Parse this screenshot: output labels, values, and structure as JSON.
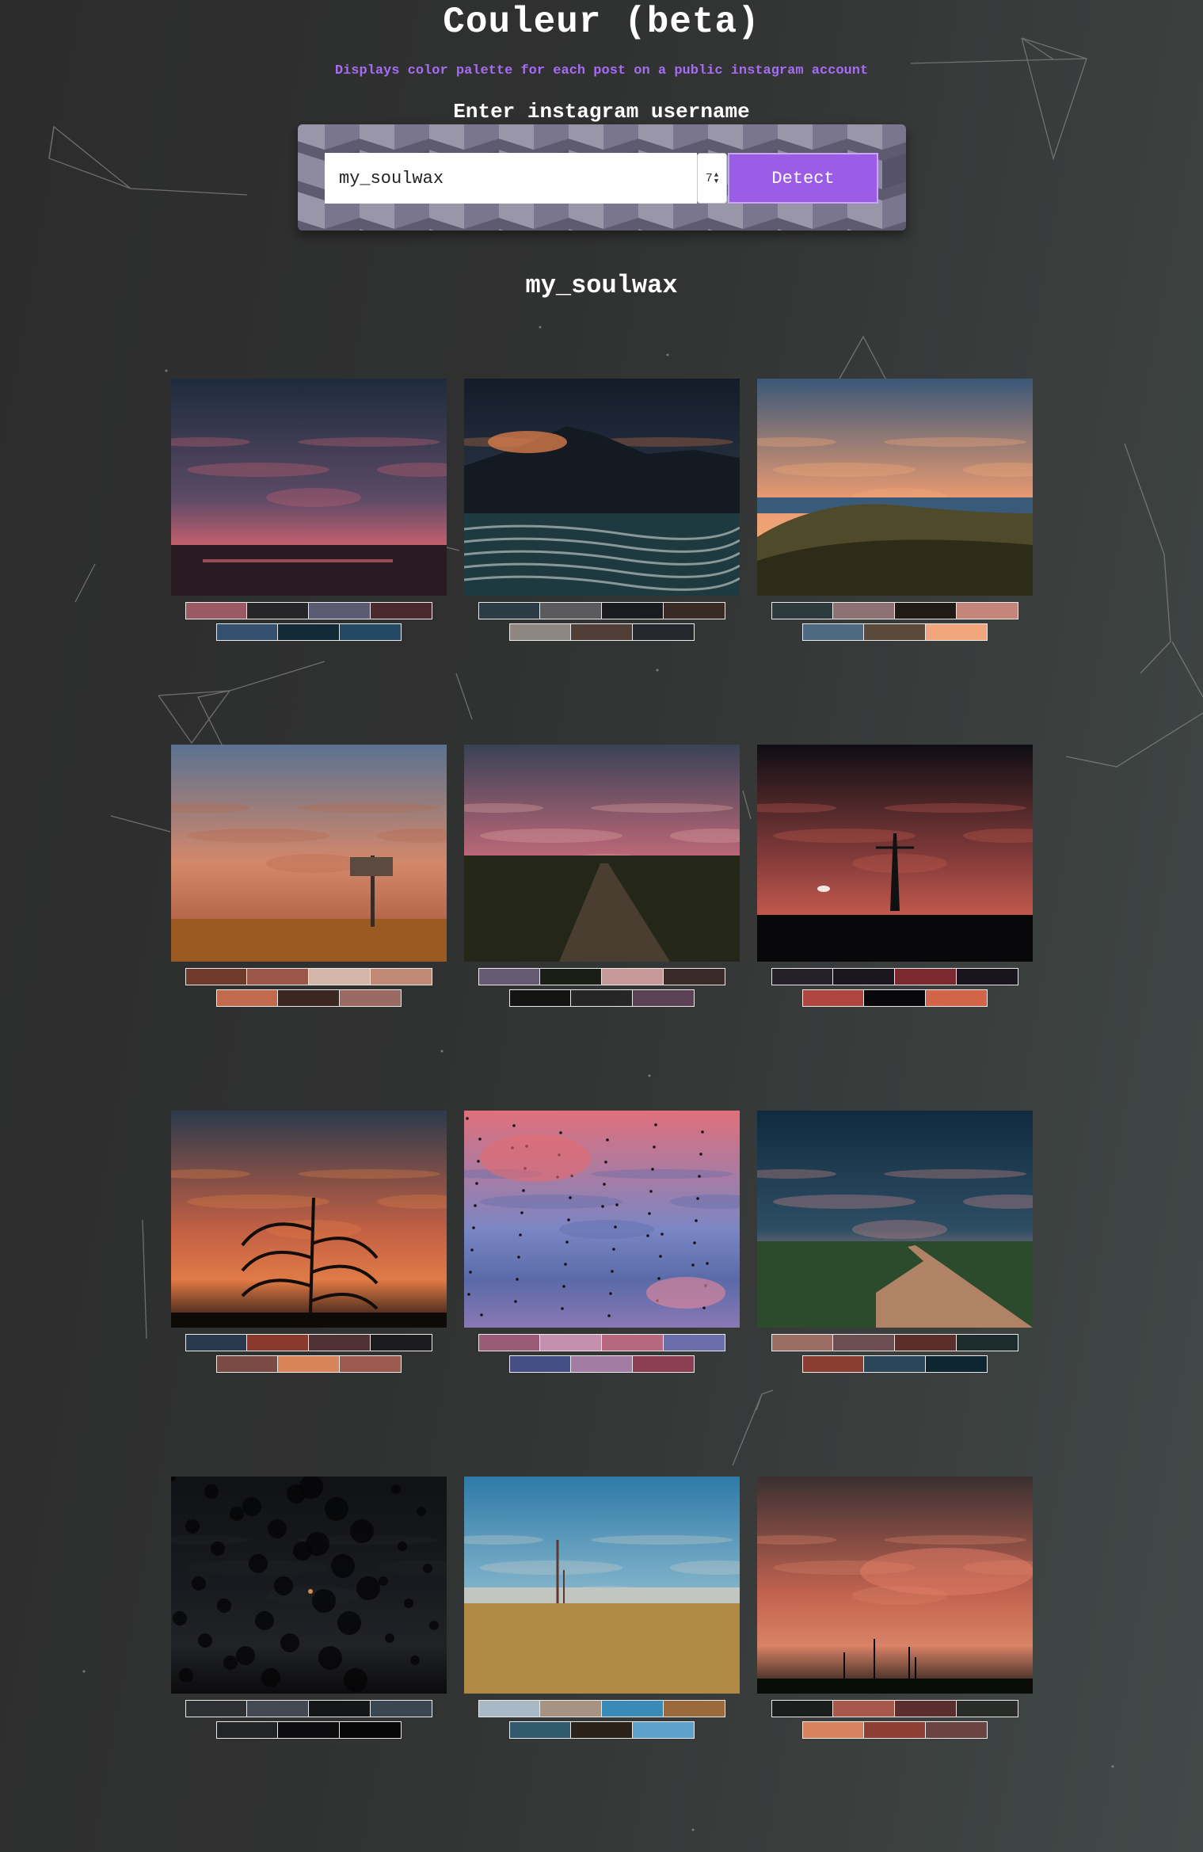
{
  "header": {
    "title": "Couleur (beta)",
    "subtitle": "Displays color palette for each post on a public instagram account",
    "input_label": "Enter instagram username"
  },
  "search": {
    "username_value": "my_soulwax",
    "count_value": "7",
    "detect_label": "Detect"
  },
  "account": {
    "username": "my_soulwax"
  },
  "colors": {
    "accent": "#9b5de5",
    "subtitle": "#a66cf2",
    "background": "#2e2e2e"
  },
  "posts": [
    {
      "sky_top": "#1d2b3d",
      "sky_mid": "#5b4a66",
      "horizon": "#c9616f",
      "ground": "#2a1a22",
      "kind": "sunset-beach",
      "palette": [
        [
          "#9a5a65",
          "#262628",
          "#5a5a72",
          "#4a2a2e"
        ],
        [
          "#33506f",
          "#122a33",
          "#234965"
        ]
      ]
    },
    {
      "sky_top": "#141c2a",
      "sky_mid": "#2a3444",
      "horizon": "#c37040",
      "ground": "#1c2c30",
      "kind": "coast",
      "palette": [
        [
          "#2b3c46",
          "#5a5a5c",
          "#1a1c20",
          "#3a2a26"
        ],
        [
          "#8e8680",
          "#4e3e36",
          "#24282c"
        ]
      ]
    },
    {
      "sky_top": "#3a5878",
      "sky_mid": "#e89a72",
      "horizon": "#f2a876",
      "ground": "#4a4628",
      "kind": "grass",
      "palette": [
        [
          "#2c3c3e",
          "#8c7272",
          "#201a16",
          "#c48678"
        ],
        [
          "#4e6a82",
          "#5a4a3c",
          "#f2a67c"
        ]
      ]
    },
    {
      "sky_top": "#5a7290",
      "sky_mid": "#d4886a",
      "horizon": "#b86a4e",
      "ground": "#8a4a22",
      "kind": "field",
      "palette": [
        [
          "#6e3a2a",
          "#9a5648",
          "#d4b6a8",
          "#c08a76"
        ],
        [
          "#c26a4e",
          "#3c2620",
          "#9a6a62"
        ]
      ]
    },
    {
      "sky_top": "#3a4256",
      "sky_mid": "#c46a7a",
      "horizon": "#e2a2a0",
      "ground": "#1e2016",
      "kind": "road",
      "palette": [
        [
          "#665a72",
          "#1a1e16",
          "#c69a98",
          "#3a2a2a"
        ],
        [
          "#141412",
          "#262626",
          "#5a4254"
        ]
      ]
    },
    {
      "sky_top": "#0e0e14",
      "sky_mid": "#8a3e3c",
      "horizon": "#c0584c",
      "ground": "#0c0a0e",
      "kind": "tower",
      "palette": [
        [
          "#26202a",
          "#1a1620",
          "#7a2a2e",
          "#18161c"
        ],
        [
          "#b04640",
          "#08080c",
          "#d26448"
        ]
      ]
    },
    {
      "sky_top": "#2c3a4c",
      "sky_mid": "#c26044",
      "horizon": "#e07a46",
      "ground": "#18100e",
      "kind": "plant",
      "palette": [
        [
          "#2a3a4e",
          "#8a3a2c",
          "#4e3236",
          "#1c1c1e"
        ],
        [
          "#7a4a44",
          "#d8845a",
          "#9c5a4e"
        ]
      ]
    },
    {
      "sky_top": "#e0707c",
      "sky_mid": "#7a86c4",
      "horizon": "#5a6aa8",
      "ground": "#8a78b4",
      "kind": "birds",
      "palette": [
        [
          "#9a5a78",
          "#c490ae",
          "#b8687e",
          "#6a6eaa"
        ],
        [
          "#464e86",
          "#a27ca2",
          "#8c3e52"
        ]
      ]
    },
    {
      "sky_top": "#102a3e",
      "sky_mid": "#2e4e64",
      "horizon": "#d08a86",
      "ground": "#9a6a56",
      "kind": "dirt-road",
      "palette": [
        [
          "#9a6e62",
          "#6a4e52",
          "#5a2e2a",
          "#1c2c2c"
        ],
        [
          "#8a3e32",
          "#2a4658",
          "#0e2630"
        ]
      ]
    },
    {
      "sky_top": "#16181c",
      "sky_mid": "#2a2e36",
      "horizon": "#3a3e44",
      "ground": "#0a0a0c",
      "kind": "trees",
      "palette": [
        [
          "#2e3034",
          "#444850",
          "#141618",
          "#3a4650"
        ],
        [
          "#222426",
          "#0c0c0e",
          "#060606"
        ]
      ]
    },
    {
      "sky_top": "#2e7aa8",
      "sky_mid": "#86b6cc",
      "horizon": "#c4ccc8",
      "ground": "#a8864a",
      "kind": "wheat",
      "palette": [
        [
          "#a8b8c4",
          "#a89282",
          "#3a8ab8",
          "#9a6a3c"
        ],
        [
          "#325a6e",
          "#2a2218",
          "#5ea2cc"
        ]
      ]
    },
    {
      "sky_top": "#3a3032",
      "sky_mid": "#c46450",
      "horizon": "#d88266",
      "ground": "#121412",
      "kind": "pylons",
      "palette": [
        [
          "#1a1e1c",
          "#a8584a",
          "#5a2e2c",
          "#2a2c2a"
        ],
        [
          "#d8825e",
          "#8e3e32",
          "#6a4240"
        ]
      ]
    }
  ]
}
